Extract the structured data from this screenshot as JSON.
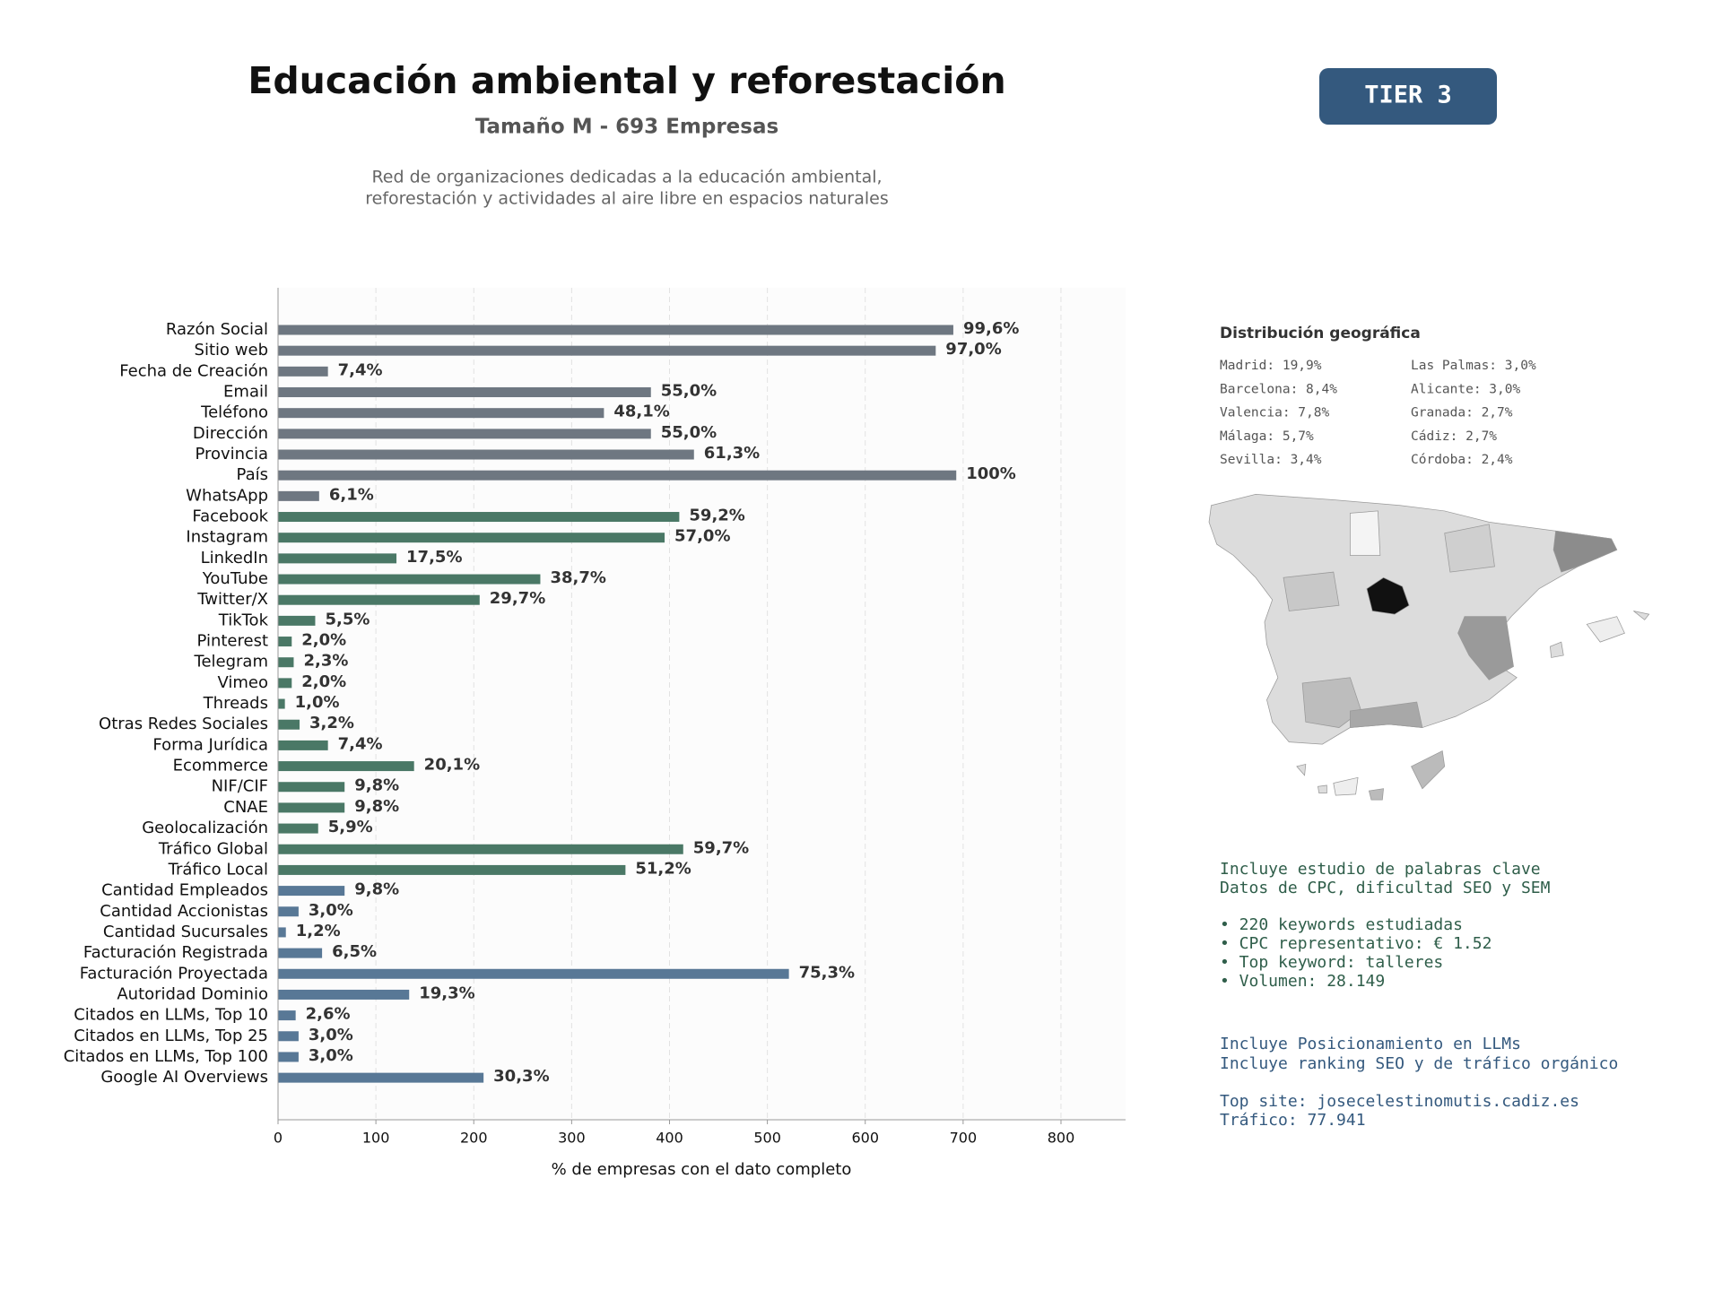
{
  "header": {
    "title": "Educación ambiental y reforestación",
    "subtitle": "Tamaño M - 693 Empresas",
    "description": [
      "Red de organizaciones dedicadas a la educación ambiental,",
      "reforestación y actividades al aire libre en espacios naturales"
    ],
    "tier": "TIER 3"
  },
  "chart_data": {
    "type": "barh",
    "xlabel": "% de empresas con el dato completo",
    "categories": [
      "Razón Social",
      "Sitio web",
      "Fecha de Creación",
      "Email",
      "Teléfono",
      "Dirección",
      "Provincia",
      "País",
      "WhatsApp",
      "Facebook",
      "Instagram",
      "LinkedIn",
      "YouTube",
      "Twitter/X",
      "TikTok",
      "Pinterest",
      "Telegram",
      "Vimeo",
      "Threads",
      "Otras Redes Sociales",
      "Forma Jurídica",
      "Ecommerce",
      "NIF/CIF",
      "CNAE",
      "Geolocalización",
      "Tráfico Global",
      "Tráfico Local",
      "Cantidad Empleados",
      "Cantidad Accionistas",
      "Cantidad Sucursales",
      "Facturación Registrada",
      "Facturación Proyectada",
      "Autoridad Dominio",
      "Citados en LLMs, Top 10",
      "Citados en LLMs, Top 25",
      "Citados en LLMs, Top 100",
      "Google AI Overviews"
    ],
    "values": [
      690,
      672,
      51,
      381,
      333,
      381,
      425,
      693,
      42,
      410,
      395,
      121,
      268,
      206,
      38,
      14,
      16,
      14,
      7,
      22,
      51,
      139,
      68,
      68,
      41,
      414,
      355,
      68,
      21,
      8,
      45,
      522,
      134,
      18,
      21,
      21,
      210
    ],
    "value_labels": [
      "99,6%",
      "97,0%",
      "7,4%",
      "55,0%",
      "48,1%",
      "55,0%",
      "61,3%",
      "100%",
      "6,1%",
      "59,2%",
      "57,0%",
      "17,5%",
      "38,7%",
      "29,7%",
      "5,5%",
      "2,0%",
      "2,3%",
      "2,0%",
      "1,0%",
      "3,2%",
      "7,4%",
      "20,1%",
      "9,8%",
      "9,8%",
      "5,9%",
      "59,7%",
      "51,2%",
      "9,8%",
      "3,0%",
      "1,2%",
      "6,5%",
      "75,3%",
      "19,3%",
      "2,6%",
      "3,0%",
      "3,0%",
      "30,3%"
    ],
    "colors": [
      "#6e7781",
      "#6e7781",
      "#6e7781",
      "#6e7781",
      "#6e7781",
      "#6e7781",
      "#6e7781",
      "#6e7781",
      "#6e7781",
      "#4a7866",
      "#4a7866",
      "#4a7866",
      "#4a7866",
      "#4a7866",
      "#4a7866",
      "#4a7866",
      "#4a7866",
      "#4a7866",
      "#4a7866",
      "#4a7866",
      "#4a7866",
      "#4a7866",
      "#4a7866",
      "#4a7866",
      "#4a7866",
      "#4a7866",
      "#4a7866",
      "#587896",
      "#587896",
      "#587896",
      "#587896",
      "#587896",
      "#587896",
      "#587896",
      "#587896",
      "#587896",
      "#587896"
    ],
    "xlim": [
      0,
      866
    ],
    "xticks": [
      0,
      100,
      200,
      300,
      400,
      500,
      600,
      700,
      800
    ],
    "grid": true
  },
  "geo": {
    "title": "Distribución geográfica",
    "items": [
      "Madrid: 19,9%",
      "Barcelona: 8,4%",
      "Valencia: 7,8%",
      "Málaga: 5,7%",
      "Sevilla: 3,4%",
      "Las Palmas: 3,0%",
      "Alicante: 3,0%",
      "Granada: 2,7%",
      "Cádiz: 2,7%",
      "Córdoba: 2,4%"
    ]
  },
  "seo": [
    "Incluye estudio de palabras clave",
    "Datos de CPC, dificultad SEO y SEM",
    "• 220 keywords estudiadas",
    "• CPC representativo: € 1.52",
    "• Top keyword: talleres",
    "• Volumen: 28.149"
  ],
  "llm": [
    "Incluye Posicionamiento en LLMs",
    "Incluye ranking SEO y de tráfico orgánico",
    "Top site: josecelestinomutis.cadiz.es",
    "Tráfico: 77.941"
  ]
}
